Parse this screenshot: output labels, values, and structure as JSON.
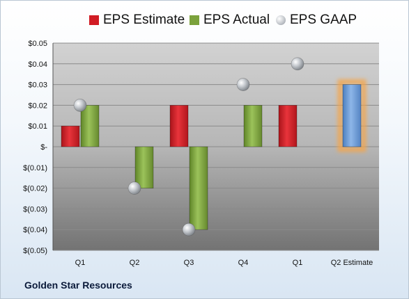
{
  "chart_data": {
    "type": "bar",
    "categories": [
      "Q1",
      "Q2",
      "Q3",
      "Q4",
      "Q1",
      "Q2 Estimate"
    ],
    "series": [
      {
        "name": "EPS Estimate",
        "values": [
          0.01,
          null,
          0.02,
          null,
          0.02,
          null
        ],
        "color": "#d11c24"
      },
      {
        "name": "EPS Actual",
        "values": [
          0.02,
          -0.02,
          -0.04,
          0.02,
          null,
          null
        ],
        "color": "#7ba23c"
      },
      {
        "name": "EPS GAAP",
        "values": [
          0.02,
          -0.02,
          -0.04,
          0.03,
          0.04,
          null
        ],
        "color": "#b8bcc2"
      }
    ],
    "estimate_bar": {
      "category": "Q2 Estimate",
      "value": 0.03,
      "color": "#6f9fd8",
      "glow": "#f5a64a"
    },
    "ylim": [
      -0.05,
      0.05
    ],
    "yticks": [
      0.05,
      0.04,
      0.03,
      0.02,
      0.01,
      0,
      -0.01,
      -0.02,
      -0.03,
      -0.04,
      -0.05
    ],
    "ytick_labels": [
      "$0.05",
      "$0.04",
      "$0.03",
      "$0.02",
      "$0.01",
      "$-",
      "$(0.01)",
      "$(0.02)",
      "$(0.03)",
      "$(0.04)",
      "$(0.05)"
    ],
    "legend_position": "top",
    "grid": true
  },
  "legend": {
    "estimate": "EPS Estimate",
    "actual": "EPS Actual",
    "gaap": "EPS GAAP"
  },
  "footer": {
    "company": "Golden Star Resources"
  }
}
